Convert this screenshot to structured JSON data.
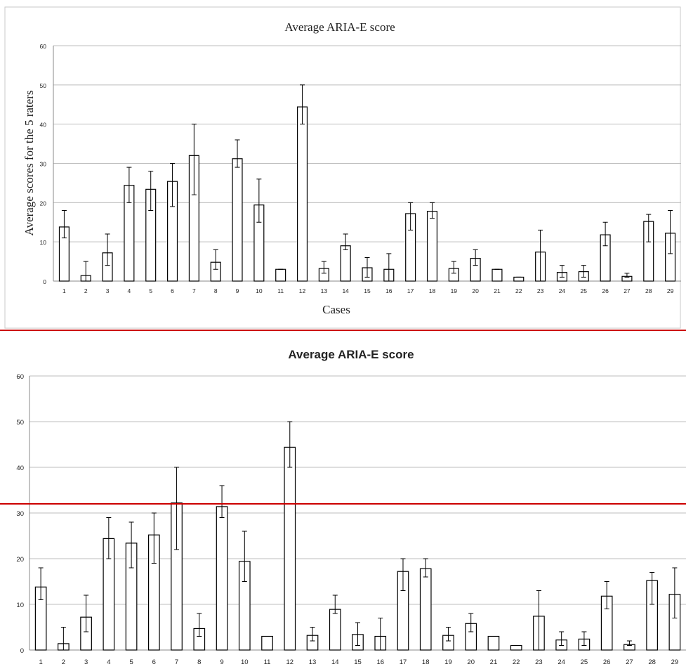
{
  "chart_data": [
    {
      "type": "bar",
      "title": "Average ARIA-E score",
      "xlabel": "Cases",
      "ylabel": "Average scores for the 5 raters",
      "ylim": [
        0,
        60
      ],
      "yticks": [
        0,
        10,
        20,
        30,
        40,
        50,
        60
      ],
      "grid": true,
      "legend": "none",
      "categories": [
        "1",
        "2",
        "3",
        "4",
        "5",
        "6",
        "7",
        "8",
        "9",
        "10",
        "11",
        "12",
        "13",
        "14",
        "15",
        "16",
        "17",
        "18",
        "19",
        "20",
        "21",
        "22",
        "23",
        "24",
        "25",
        "26",
        "27",
        "28",
        "29"
      ],
      "values": [
        13.8,
        1.4,
        7.2,
        24.4,
        23.4,
        25.4,
        32.0,
        4.8,
        31.2,
        19.4,
        3.0,
        44.4,
        3.2,
        9.0,
        3.4,
        3.0,
        17.2,
        17.8,
        3.2,
        5.8,
        3.0,
        1.0,
        7.4,
        2.2,
        2.4,
        11.8,
        1.2,
        15.2,
        12.2
      ],
      "error_low": [
        11,
        0,
        4,
        20,
        18,
        19,
        22,
        3,
        29,
        15,
        3,
        40,
        2,
        8,
        1,
        0,
        13,
        16,
        2,
        4,
        3,
        1,
        0,
        1,
        1,
        9,
        1,
        10,
        7
      ],
      "error_high": [
        18,
        5,
        12,
        29,
        28,
        30,
        40,
        8,
        36,
        26,
        3,
        50,
        5,
        12,
        6,
        7,
        20,
        20,
        5,
        8,
        3,
        1,
        13,
        4,
        4,
        15,
        2,
        17,
        18
      ]
    },
    {
      "type": "bar",
      "title": "Average ARIA-E score",
      "xlabel": "",
      "ylabel": "",
      "ylim": [
        0,
        60
      ],
      "yticks": [
        0,
        10,
        20,
        30,
        40,
        50,
        60
      ],
      "grid": true,
      "legend": "none",
      "reference_line": 32,
      "categories": [
        "1",
        "2",
        "3",
        "4",
        "5",
        "6",
        "7",
        "8",
        "9",
        "10",
        "11",
        "12",
        "13",
        "14",
        "15",
        "16",
        "17",
        "18",
        "19",
        "20",
        "21",
        "22",
        "23",
        "24",
        "25",
        "26",
        "27",
        "28",
        "29"
      ],
      "values": [
        13.8,
        1.4,
        7.2,
        24.4,
        23.4,
        25.2,
        32.2,
        4.7,
        31.4,
        19.4,
        3.0,
        44.4,
        3.2,
        8.9,
        3.4,
        3.0,
        17.2,
        17.8,
        3.2,
        5.8,
        3.0,
        1.0,
        7.4,
        2.2,
        2.4,
        11.8,
        1.2,
        15.2,
        12.2
      ],
      "error_low": [
        11,
        0,
        4,
        20,
        18,
        19,
        22,
        3,
        29,
        15,
        3,
        40,
        2,
        8,
        1,
        0,
        13,
        16,
        2,
        4,
        3,
        1,
        0,
        1,
        1,
        9,
        1,
        10,
        7
      ],
      "error_high": [
        18,
        5,
        12,
        29,
        28,
        30,
        40,
        8,
        36,
        26,
        3,
        50,
        5,
        12,
        6,
        7,
        20,
        20,
        5,
        8,
        3,
        1,
        13,
        4,
        4,
        15,
        2,
        17,
        18
      ]
    }
  ],
  "colors": {
    "bar_fill": "#ffffff",
    "bar_stroke": "#000000",
    "grid": "#bdbdbd",
    "axis": "#8a8a8a",
    "frame": "#c8c8c8",
    "separator": "#cc0000",
    "reference_line": "#cc0000",
    "text": "#222222"
  }
}
